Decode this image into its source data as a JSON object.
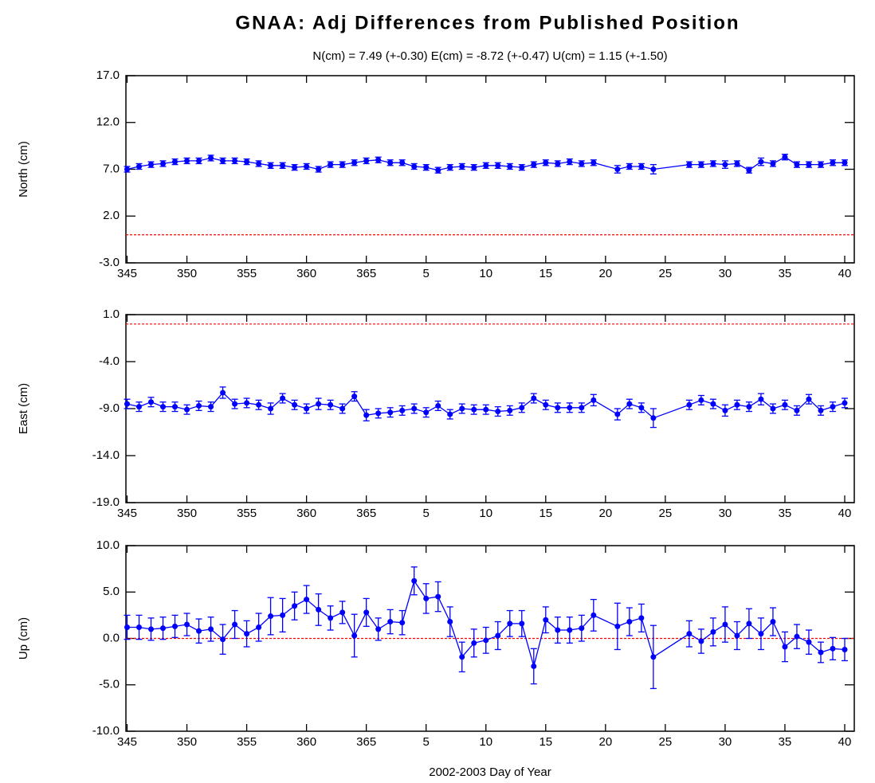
{
  "chart_data": [
    {
      "type": "errorbar",
      "title": "GNAA: Adj Differences from Published Position",
      "subtitle": "N(cm) = 7.49 (+-0.30)  E(cm) = -8.72 (+-0.47)  U(cm) = 1.15 (+-1.50)",
      "ylabel": "North (cm)",
      "color": "#0000ff",
      "hline": 0,
      "hline_color": "#ff0000",
      "x": [
        345,
        346,
        347,
        348,
        349,
        350,
        351,
        352,
        353,
        354,
        355,
        356,
        357,
        358,
        359,
        360,
        361,
        362,
        363,
        364,
        365,
        366,
        367,
        368,
        369,
        370,
        371,
        372,
        373,
        374,
        375,
        376,
        377,
        378,
        379,
        380,
        381,
        382,
        383,
        384,
        386,
        387,
        388,
        389,
        392,
        393,
        394,
        395,
        396,
        397,
        398,
        399,
        400,
        401,
        402,
        403,
        404,
        405
      ],
      "values": [
        7.0,
        7.3,
        7.5,
        7.6,
        7.8,
        7.9,
        7.9,
        8.2,
        7.9,
        7.9,
        7.8,
        7.6,
        7.4,
        7.4,
        7.2,
        7.3,
        7.0,
        7.5,
        7.5,
        7.7,
        7.9,
        8.0,
        7.7,
        7.7,
        7.3,
        7.2,
        6.9,
        7.2,
        7.3,
        7.2,
        7.4,
        7.4,
        7.3,
        7.2,
        7.5,
        7.7,
        7.6,
        7.8,
        7.6,
        7.7,
        7.0,
        7.3,
        7.3,
        7.0,
        7.5,
        7.5,
        7.6,
        7.5,
        7.6,
        6.9,
        7.8,
        7.6,
        8.3,
        7.5,
        7.5,
        7.5,
        7.7,
        7.7
      ],
      "errors": [
        0.3,
        0.3,
        0.3,
        0.3,
        0.3,
        0.3,
        0.3,
        0.3,
        0.3,
        0.3,
        0.3,
        0.3,
        0.3,
        0.3,
        0.3,
        0.3,
        0.3,
        0.3,
        0.3,
        0.3,
        0.3,
        0.3,
        0.3,
        0.3,
        0.3,
        0.3,
        0.3,
        0.3,
        0.3,
        0.3,
        0.3,
        0.3,
        0.3,
        0.3,
        0.3,
        0.3,
        0.3,
        0.3,
        0.3,
        0.3,
        0.4,
        0.3,
        0.3,
        0.5,
        0.3,
        0.3,
        0.3,
        0.4,
        0.3,
        0.3,
        0.4,
        0.3,
        0.3,
        0.3,
        0.3,
        0.3,
        0.3,
        0.3
      ],
      "xlim": [
        344.9,
        405.8
      ],
      "xticks": [
        345,
        350,
        355,
        360,
        365,
        {
          "value": 370,
          "label": "5"
        },
        {
          "value": 375,
          "label": "10"
        },
        {
          "value": 380,
          "label": "15"
        },
        {
          "value": 385,
          "label": "20"
        },
        {
          "value": 390,
          "label": "25"
        },
        {
          "value": 395,
          "label": "30"
        },
        {
          "value": 400,
          "label": "35"
        },
        {
          "value": 405,
          "label": "40"
        }
      ],
      "ylim": [
        -3,
        17
      ],
      "yticks": [
        {
          "value": 17,
          "label": "17.0"
        },
        {
          "value": 12,
          "label": "12.0"
        },
        {
          "value": 7,
          "label": "7.0"
        },
        {
          "value": 2,
          "label": "2.0"
        },
        {
          "value": -3,
          "label": "-3.0"
        }
      ]
    },
    {
      "type": "errorbar",
      "ylabel": "East (cm)",
      "color": "#0000ff",
      "hline": 0,
      "hline_color": "#ff0000",
      "x": [
        345,
        346,
        347,
        348,
        349,
        350,
        351,
        352,
        353,
        354,
        355,
        356,
        357,
        358,
        359,
        360,
        361,
        362,
        363,
        364,
        365,
        366,
        367,
        368,
        369,
        370,
        371,
        372,
        373,
        374,
        375,
        376,
        377,
        378,
        379,
        380,
        381,
        382,
        383,
        384,
        386,
        387,
        388,
        389,
        392,
        393,
        394,
        395,
        396,
        397,
        398,
        399,
        400,
        401,
        402,
        403,
        404,
        405
      ],
      "values": [
        -8.5,
        -8.8,
        -8.3,
        -8.8,
        -8.8,
        -9.1,
        -8.7,
        -8.8,
        -7.3,
        -8.5,
        -8.4,
        -8.6,
        -9.0,
        -7.9,
        -8.6,
        -9.0,
        -8.5,
        -8.6,
        -9.0,
        -7.7,
        -9.7,
        -9.5,
        -9.4,
        -9.2,
        -9.0,
        -9.4,
        -8.7,
        -9.6,
        -9.0,
        -9.1,
        -9.1,
        -9.3,
        -9.2,
        -8.9,
        -7.9,
        -8.6,
        -8.9,
        -8.9,
        -8.9,
        -8.1,
        -9.6,
        -8.5,
        -8.9,
        -10.0,
        -8.6,
        -8.1,
        -8.5,
        -9.2,
        -8.6,
        -8.8,
        -8.0,
        -9.0,
        -8.6,
        -9.2,
        -8.0,
        -9.2,
        -8.8,
        -8.4
      ],
      "errors": [
        0.5,
        0.5,
        0.5,
        0.5,
        0.5,
        0.5,
        0.5,
        0.5,
        0.6,
        0.5,
        0.5,
        0.5,
        0.6,
        0.5,
        0.5,
        0.5,
        0.6,
        0.5,
        0.5,
        0.5,
        0.6,
        0.5,
        0.5,
        0.5,
        0.5,
        0.5,
        0.5,
        0.5,
        0.5,
        0.5,
        0.5,
        0.5,
        0.5,
        0.5,
        0.5,
        0.5,
        0.5,
        0.5,
        0.5,
        0.6,
        0.6,
        0.5,
        0.5,
        1.0,
        0.5,
        0.5,
        0.5,
        0.6,
        0.5,
        0.5,
        0.6,
        0.5,
        0.5,
        0.5,
        0.5,
        0.5,
        0.5,
        0.5
      ],
      "xlim": [
        344.9,
        405.8
      ],
      "xticks": [
        345,
        350,
        355,
        360,
        365,
        {
          "value": 370,
          "label": "5"
        },
        {
          "value": 375,
          "label": "10"
        },
        {
          "value": 380,
          "label": "15"
        },
        {
          "value": 385,
          "label": "20"
        },
        {
          "value": 390,
          "label": "25"
        },
        {
          "value": 395,
          "label": "30"
        },
        {
          "value": 400,
          "label": "35"
        },
        {
          "value": 405,
          "label": "40"
        }
      ],
      "ylim": [
        -19,
        1
      ],
      "yticks": [
        {
          "value": 1,
          "label": "1.0"
        },
        {
          "value": -4,
          "label": "-4.0"
        },
        {
          "value": -9,
          "label": "-9.0"
        },
        {
          "value": -14,
          "label": "-14.0"
        },
        {
          "value": -19,
          "label": "-19.0"
        }
      ]
    },
    {
      "type": "errorbar",
      "ylabel": "Up (cm)",
      "xlabel": "2002-2003 Day of Year",
      "color": "#0000ff",
      "hline": 0,
      "hline_color": "#ff0000",
      "x": [
        345,
        346,
        347,
        348,
        349,
        350,
        351,
        352,
        353,
        354,
        355,
        356,
        357,
        358,
        359,
        360,
        361,
        362,
        363,
        364,
        365,
        366,
        367,
        368,
        369,
        370,
        371,
        372,
        373,
        374,
        375,
        376,
        377,
        378,
        379,
        380,
        381,
        382,
        383,
        384,
        386,
        387,
        388,
        389,
        392,
        393,
        394,
        395,
        396,
        397,
        398,
        399,
        400,
        401,
        402,
        403,
        404,
        405
      ],
      "values": [
        1.2,
        1.2,
        1.0,
        1.1,
        1.3,
        1.5,
        0.8,
        1.0,
        -0.1,
        1.5,
        0.5,
        1.2,
        2.4,
        2.5,
        3.5,
        4.2,
        3.1,
        2.2,
        2.8,
        0.3,
        2.8,
        1.0,
        1.8,
        1.7,
        6.2,
        4.3,
        4.5,
        1.8,
        -2.0,
        -0.5,
        -0.2,
        0.3,
        1.6,
        1.6,
        -3.0,
        2.0,
        0.9,
        0.9,
        1.1,
        2.5,
        1.3,
        1.8,
        2.2,
        -2.0,
        0.5,
        -0.3,
        0.7,
        1.5,
        0.3,
        1.6,
        0.5,
        1.8,
        -0.9,
        0.2,
        -0.4,
        -1.5,
        -1.1,
        -1.2
      ],
      "errors": [
        1.3,
        1.3,
        1.2,
        1.2,
        1.2,
        1.2,
        1.3,
        1.3,
        1.6,
        1.5,
        1.4,
        1.5,
        2.0,
        1.8,
        1.5,
        1.5,
        1.7,
        1.3,
        1.2,
        2.3,
        1.5,
        1.2,
        1.3,
        1.3,
        1.5,
        1.6,
        1.6,
        1.6,
        1.6,
        1.5,
        1.4,
        1.5,
        1.4,
        1.4,
        1.9,
        1.4,
        1.4,
        1.4,
        1.4,
        1.7,
        2.5,
        1.5,
        1.5,
        3.4,
        1.4,
        1.3,
        1.5,
        1.9,
        1.5,
        1.6,
        1.7,
        1.5,
        1.6,
        1.3,
        1.3,
        1.1,
        1.2,
        1.2
      ],
      "xlim": [
        344.9,
        405.8
      ],
      "xticks": [
        345,
        350,
        355,
        360,
        365,
        {
          "value": 370,
          "label": "5"
        },
        {
          "value": 375,
          "label": "10"
        },
        {
          "value": 380,
          "label": "15"
        },
        {
          "value": 385,
          "label": "20"
        },
        {
          "value": 390,
          "label": "25"
        },
        {
          "value": 395,
          "label": "30"
        },
        {
          "value": 400,
          "label": "35"
        },
        {
          "value": 405,
          "label": "40"
        }
      ],
      "ylim": [
        -10,
        10
      ],
      "yticks": [
        {
          "value": 10,
          "label": "10.0"
        },
        {
          "value": 5,
          "label": "5.0"
        },
        {
          "value": 0,
          "label": "0.0"
        },
        {
          "value": -5,
          "label": "-5.0"
        },
        {
          "value": -10,
          "label": "-10.0"
        }
      ]
    }
  ]
}
